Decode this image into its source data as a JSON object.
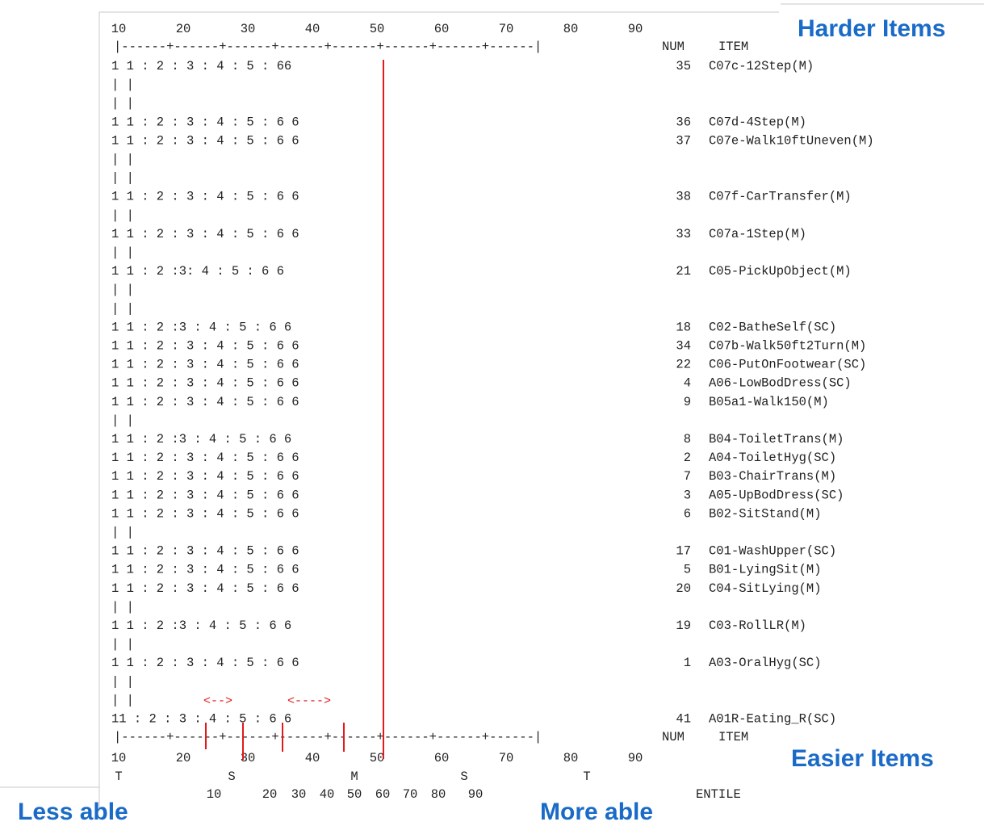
{
  "labels": {
    "harder": "Harder Items",
    "easier": "Easier Items",
    "less_able": "Less able",
    "more_able": "More able",
    "num_header": "NUM",
    "item_header": "ITEM",
    "percentile_fragment": "ENTILE"
  },
  "chart_data": {
    "type": "table",
    "description_type": "Rasch category probability / item map (fixed-width output)",
    "x_ticks": [
      10,
      20,
      30,
      40,
      50,
      60,
      70,
      80,
      90
    ],
    "xlim": [
      10,
      90
    ],
    "mean_line_x": 51,
    "bottom_markers": [
      "T",
      "S",
      "M",
      "S",
      "T"
    ],
    "percentile_ticks": [
      "10",
      "20",
      "30",
      "40",
      "50",
      "60",
      "70",
      "80",
      "90"
    ],
    "arrows": [
      "<-->",
      "<---->"
    ],
    "rows": [
      {
        "line": "1                        1 :  2  : 3 : 4 :  5   :   66",
        "num": "35",
        "item": "C07c-12Step(M)"
      },
      {
        "line": "|                                                     |",
        "num": "",
        "item": ""
      },
      {
        "line": "|                                                     |",
        "num": "",
        "item": ""
      },
      {
        "line": "1                     1  :  2  : 3 : 4 :  5   :   6    6",
        "num": "36",
        "item": "C07d-4Step(M)"
      },
      {
        "line": "1                    1   :  2 : 3 : 4  :  5   :   6    6",
        "num": "37",
        "item": "C07e-Walk10ftUneven(M)"
      },
      {
        "line": "|                                                     |",
        "num": "",
        "item": ""
      },
      {
        "line": "|                                                     |",
        "num": "",
        "item": ""
      },
      {
        "line": "1                   1  :  2  : 3 : 4 :  5   :   6      6",
        "num": "38",
        "item": "C07f-CarTransfer(M)"
      },
      {
        "line": "|                                                     |",
        "num": "",
        "item": ""
      },
      {
        "line": "1                  1  :  2  : 3 : 4  :  5   :   6      6",
        "num": "33",
        "item": "C07a-1Step(M)"
      },
      {
        "line": "|                                                     |",
        "num": "",
        "item": ""
      },
      {
        "line": "1                1  :  2  :3:  4 :  5   :   6          6",
        "num": "21",
        "item": "C05-PickUpObject(M)"
      },
      {
        "line": "|                                                     |",
        "num": "",
        "item": ""
      },
      {
        "line": "|                                                     |",
        "num": "",
        "item": ""
      },
      {
        "line": "1             1  :  2  :3 :  4 :  5   :   6            6",
        "num": "18",
        "item": "C02-BatheSelf(SC)"
      },
      {
        "line": "1            1  :   2 : 3 :  4 :  5    :   6           6",
        "num": "34",
        "item": "C07b-Walk50ft2Turn(M)"
      },
      {
        "line": "1            1  :  2 : 3 :  4 :  5   :   6             6",
        "num": "22",
        "item": "C06-PutOnFootwear(SC)"
      },
      {
        "line": "1           1  :  2 : 3 : 4  :  5   :   6              6",
        "num": "4",
        "item": "A06-LowBodDress(SC)"
      },
      {
        "line": "1          1  :  2 : 3 : 4  :  5   :   6               6",
        "num": "9",
        "item": "B05a1-Walk150(M)"
      },
      {
        "line": "|                                                     |",
        "num": "",
        "item": ""
      },
      {
        "line": "1        1  :  2  :3 :  4 :  5   :   6                 6",
        "num": "8",
        "item": "B04-ToiletTrans(M)"
      },
      {
        "line": "1        1  :  2 : 3 : 4  :  5   :   6                 6",
        "num": "2",
        "item": "A04-ToiletHyg(SC)"
      },
      {
        "line": "1       1  :   2 : 3 : 4 :  5   :   6                  6",
        "num": "7",
        "item": "B03-ChairTrans(M)"
      },
      {
        "line": "1       1  :  2  : 3 : 4 :  5   :   6                  6",
        "num": "3",
        "item": "A05-UpBodDress(SC)"
      },
      {
        "line": "1       1  :  2  : 3 : 4 :  5   :   6                  6",
        "num": "6",
        "item": "B02-SitStand(M)"
      },
      {
        "line": "|                                                     |",
        "num": "",
        "item": ""
      },
      {
        "line": "1      1  :  2 : 3 : 4  :  5   :   6                   6",
        "num": "17",
        "item": "C01-WashUpper(SC)"
      },
      {
        "line": "1     1  :  2 : 3 : 4  :  5   :   6                    6",
        "num": "5",
        "item": "B01-LyingSit(M)"
      },
      {
        "line": "1     1  :  2 : 3 : 4  : 5   :   6                     6",
        "num": "20",
        "item": "C04-SitLying(M)"
      },
      {
        "line": "|                                                     |",
        "num": "",
        "item": ""
      },
      {
        "line": "1    1  :  2  :3 :  4 :  5   :   6                     6",
        "num": "19",
        "item": "C03-RollLR(M)"
      },
      {
        "line": "|                                                     |",
        "num": "",
        "item": ""
      },
      {
        "line": "1  1  :  2 : 3 : 4  :  5   :   6                       6",
        "num": "1",
        "item": "A03-OralHyg(SC)"
      },
      {
        "line": "|                                                     |",
        "num": "",
        "item": ""
      },
      {
        "line": "|                                                     |",
        "num": "",
        "item": ""
      },
      {
        "line": "11  :   2 : 3 : 4 :  5   :   6                         6",
        "num": "41",
        "item": "A01R-Eating_R(SC)"
      }
    ]
  }
}
